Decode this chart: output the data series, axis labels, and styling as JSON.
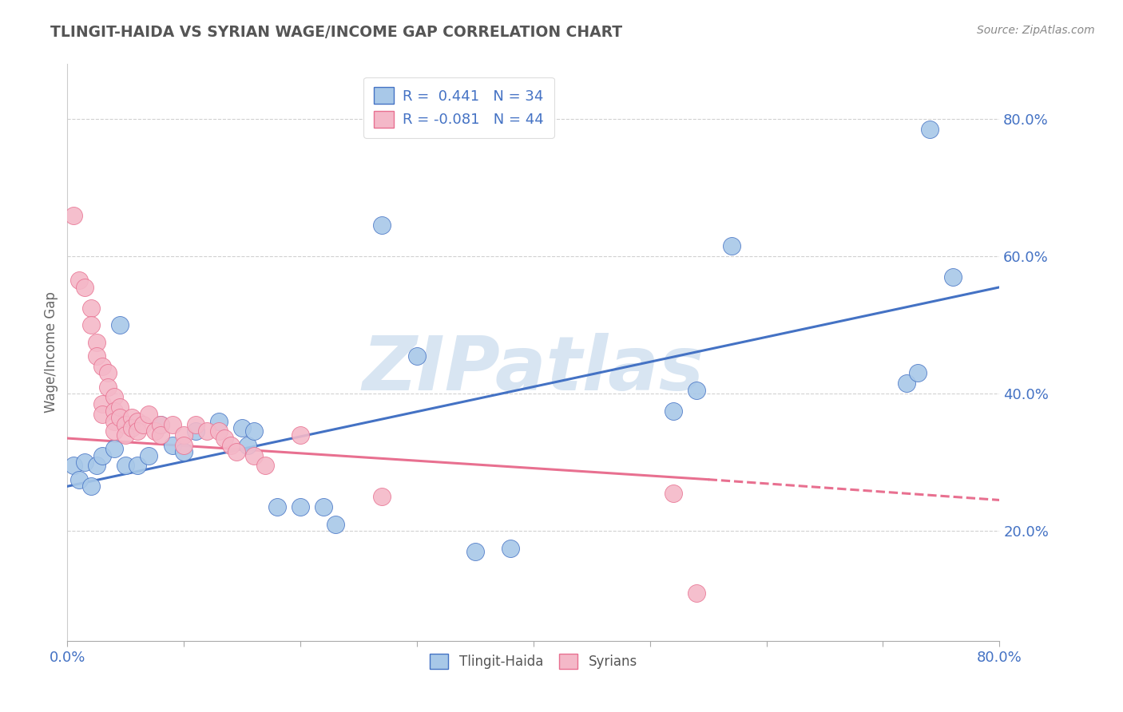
{
  "title": "TLINGIT-HAIDA VS SYRIAN WAGE/INCOME GAP CORRELATION CHART",
  "source": "Source: ZipAtlas.com",
  "ylabel": "Wage/Income Gap",
  "watermark": "ZIPatlas",
  "legend_r1": "R =  0.441",
  "legend_n1": "N = 34",
  "legend_r2": "R = -0.081",
  "legend_n2": "N = 44",
  "blue_color": "#A8C8E8",
  "pink_color": "#F4B8C8",
  "blue_line_color": "#4472C4",
  "pink_line_color": "#E87090",
  "blue_scatter": [
    [
      0.005,
      0.295
    ],
    [
      0.01,
      0.275
    ],
    [
      0.015,
      0.3
    ],
    [
      0.02,
      0.265
    ],
    [
      0.025,
      0.295
    ],
    [
      0.03,
      0.31
    ],
    [
      0.04,
      0.32
    ],
    [
      0.045,
      0.5
    ],
    [
      0.05,
      0.295
    ],
    [
      0.06,
      0.295
    ],
    [
      0.07,
      0.31
    ],
    [
      0.08,
      0.355
    ],
    [
      0.09,
      0.325
    ],
    [
      0.1,
      0.315
    ],
    [
      0.11,
      0.345
    ],
    [
      0.13,
      0.36
    ],
    [
      0.15,
      0.35
    ],
    [
      0.155,
      0.325
    ],
    [
      0.16,
      0.345
    ],
    [
      0.18,
      0.235
    ],
    [
      0.2,
      0.235
    ],
    [
      0.22,
      0.235
    ],
    [
      0.23,
      0.21
    ],
    [
      0.27,
      0.645
    ],
    [
      0.3,
      0.455
    ],
    [
      0.35,
      0.17
    ],
    [
      0.38,
      0.175
    ],
    [
      0.52,
      0.375
    ],
    [
      0.54,
      0.405
    ],
    [
      0.57,
      0.615
    ],
    [
      0.72,
      0.415
    ],
    [
      0.73,
      0.43
    ],
    [
      0.74,
      0.785
    ],
    [
      0.76,
      0.57
    ]
  ],
  "pink_scatter": [
    [
      0.005,
      0.66
    ],
    [
      0.01,
      0.565
    ],
    [
      0.015,
      0.555
    ],
    [
      0.02,
      0.525
    ],
    [
      0.02,
      0.5
    ],
    [
      0.025,
      0.475
    ],
    [
      0.025,
      0.455
    ],
    [
      0.03,
      0.44
    ],
    [
      0.03,
      0.385
    ],
    [
      0.03,
      0.37
    ],
    [
      0.035,
      0.43
    ],
    [
      0.035,
      0.41
    ],
    [
      0.04,
      0.395
    ],
    [
      0.04,
      0.375
    ],
    [
      0.04,
      0.36
    ],
    [
      0.04,
      0.345
    ],
    [
      0.045,
      0.38
    ],
    [
      0.045,
      0.365
    ],
    [
      0.05,
      0.355
    ],
    [
      0.05,
      0.34
    ],
    [
      0.055,
      0.365
    ],
    [
      0.055,
      0.35
    ],
    [
      0.06,
      0.36
    ],
    [
      0.06,
      0.345
    ],
    [
      0.065,
      0.355
    ],
    [
      0.07,
      0.37
    ],
    [
      0.075,
      0.345
    ],
    [
      0.08,
      0.355
    ],
    [
      0.08,
      0.34
    ],
    [
      0.09,
      0.355
    ],
    [
      0.1,
      0.34
    ],
    [
      0.1,
      0.325
    ],
    [
      0.11,
      0.355
    ],
    [
      0.12,
      0.345
    ],
    [
      0.13,
      0.345
    ],
    [
      0.135,
      0.335
    ],
    [
      0.14,
      0.325
    ],
    [
      0.145,
      0.315
    ],
    [
      0.16,
      0.31
    ],
    [
      0.17,
      0.295
    ],
    [
      0.2,
      0.34
    ],
    [
      0.27,
      0.25
    ],
    [
      0.52,
      0.255
    ],
    [
      0.54,
      0.11
    ]
  ],
  "xlim": [
    0.0,
    0.8
  ],
  "ylim": [
    0.04,
    0.88
  ],
  "yticks": [
    0.2,
    0.4,
    0.6,
    0.8
  ],
  "ytick_labels": [
    "20.0%",
    "40.0%",
    "60.0%",
    "80.0%"
  ],
  "xtick_positions": [
    0.0,
    0.1,
    0.2,
    0.3,
    0.4,
    0.5,
    0.6,
    0.7,
    0.8
  ],
  "blue_line": [
    [
      0.0,
      0.265
    ],
    [
      0.8,
      0.555
    ]
  ],
  "pink_line_solid": [
    [
      0.0,
      0.335
    ],
    [
      0.55,
      0.275
    ]
  ],
  "pink_line_dash": [
    [
      0.55,
      0.275
    ],
    [
      0.8,
      0.245
    ]
  ],
  "background_color": "#FFFFFF"
}
